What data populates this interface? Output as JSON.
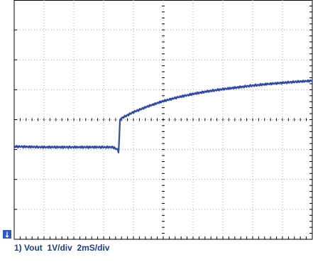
{
  "caption": "1) Vout  1V/div  2mS/div",
  "marker_text": "↓",
  "colors": {
    "trace": "#2f4aa8",
    "grid": "#a0a0a0",
    "frame": "#000000",
    "marker_bg": "#2f57c7",
    "marker_fg": "#ffffff"
  },
  "chart_data": {
    "type": "line",
    "title": "",
    "xlabel": "",
    "ylabel": "",
    "x_divisions": 10,
    "y_divisions": 8,
    "x_unit_per_div": "2mS/div",
    "y_unit_per_div": "1V/div",
    "xlim": [
      0,
      20
    ],
    "ylim": [
      -4,
      4
    ],
    "grid": true,
    "series": [
      {
        "x": [
          0,
          2,
          4,
          6,
          6.6,
          6.95,
          7.0,
          7.05,
          7.1,
          7.2,
          7.6,
          8,
          9,
          10,
          11,
          12,
          13,
          14,
          15,
          16,
          17,
          18,
          19,
          20
        ],
        "y": [
          -0.9,
          -0.92,
          -0.92,
          -0.92,
          -0.92,
          -1.0,
          -1.1,
          -0.6,
          0.0,
          0.05,
          0.15,
          0.25,
          0.45,
          0.62,
          0.75,
          0.86,
          0.95,
          1.02,
          1.08,
          1.14,
          1.19,
          1.23,
          1.27,
          1.3
        ]
      }
    ]
  }
}
